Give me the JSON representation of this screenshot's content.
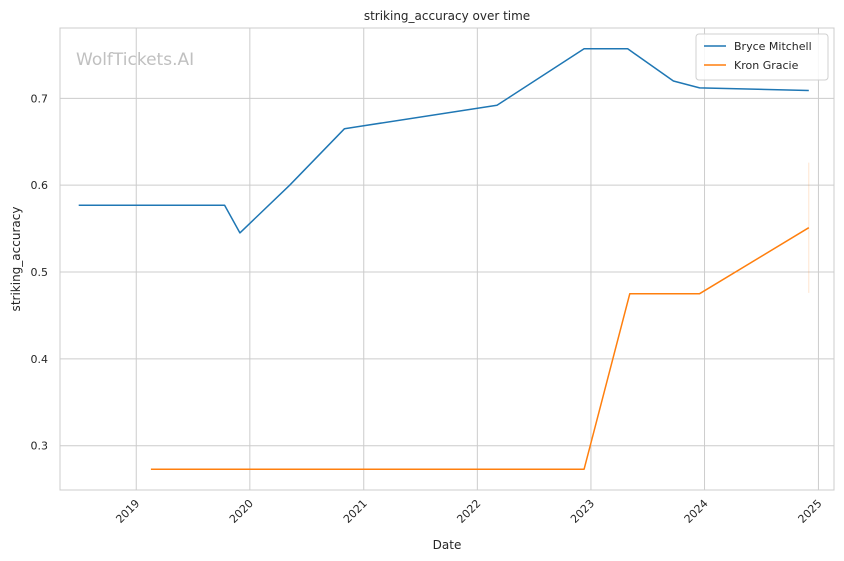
{
  "chart_data": {
    "type": "line",
    "title": "striking_accuracy over time",
    "xlabel": "Date",
    "ylabel": "striking_accuracy",
    "watermark": "WolfTickets.AI",
    "x_ticks": [
      "2019",
      "2020",
      "2021",
      "2022",
      "2023",
      "2024",
      "2025"
    ],
    "y_ticks": [
      "0.3",
      "0.4",
      "0.5",
      "0.6",
      "0.7"
    ],
    "xlim": [
      "2018-05-01",
      "2025-02-20"
    ],
    "ylim": [
      0.249,
      0.781
    ],
    "grid": true,
    "legend_position": "top-right",
    "series": [
      {
        "name": "Bryce Mitchell",
        "color": "#1f77b4",
        "x": [
          "2018-06-30",
          "2019-10-12",
          "2019-11-30",
          "2020-05-08",
          "2020-10-31",
          "2022-03-05",
          "2022-12-10",
          "2023-04-29",
          "2023-09-23",
          "2023-12-16",
          "2024-12-01"
        ],
        "y": [
          0.577,
          0.577,
          0.545,
          0.6,
          0.665,
          0.692,
          0.757,
          0.757,
          0.72,
          0.712,
          0.709
        ]
      },
      {
        "name": "Kron Gracie",
        "color": "#ff7f0e",
        "x": [
          "2019-02-17",
          "2022-12-10",
          "2023-05-06",
          "2023-12-16",
          "2024-12-01"
        ],
        "y": [
          0.273,
          0.273,
          0.475,
          0.475,
          0.551
        ],
        "error_band": {
          "x": "2024-12-01",
          "low": 0.476,
          "high": 0.626
        }
      }
    ]
  }
}
